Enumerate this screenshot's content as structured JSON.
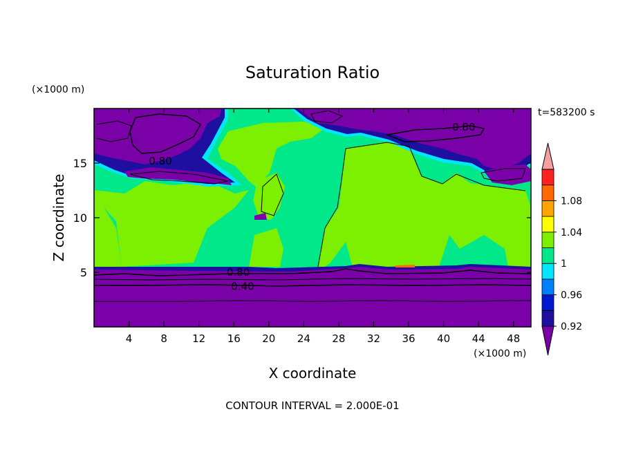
{
  "chart_data": {
    "type": "heatmap",
    "title": "Saturation Ratio",
    "xlabel": "X coordinate",
    "ylabel": "Z coordinate",
    "x_unit": "(×1000 m)",
    "y_unit": "(×1000 m)",
    "time_label": "t=583200 s",
    "footer": "CONTOUR INTERVAL = 2.000E-01",
    "xlim": [
      0,
      50
    ],
    "ylim": [
      0,
      20
    ],
    "x_ticks": [
      4,
      8,
      12,
      16,
      20,
      24,
      28,
      32,
      36,
      40,
      44,
      48
    ],
    "y_ticks": [
      5,
      10,
      15
    ],
    "contour_labels": [
      {
        "text": "0.80",
        "x": 16.5,
        "y": 5.0
      },
      {
        "text": "0.40",
        "x": 17.0,
        "y": 3.7
      },
      {
        "text": "0.80",
        "x": 7.6,
        "y": 15.2
      },
      {
        "text": "0.80",
        "x": 42.3,
        "y": 18.3
      }
    ],
    "colorbar": {
      "labels": [
        "1.08",
        "1.04",
        "1",
        "0.96",
        "0.92"
      ],
      "colors": [
        "#7a00a8",
        "#1e0fa0",
        "#0018d0",
        "#0080ff",
        "#00e6ff",
        "#00e88a",
        "#7cf000",
        "#ffff00",
        "#ffa500",
        "#ff6a00",
        "#ff2020",
        "#f4a0a0"
      ]
    },
    "colors": {
      "purple": "#7a00a8",
      "green": "#00e88a",
      "lime": "#7cf000",
      "blue": "#1e0fa0",
      "cyan": "#00e6ff",
      "orange": "#ff6a00"
    }
  }
}
